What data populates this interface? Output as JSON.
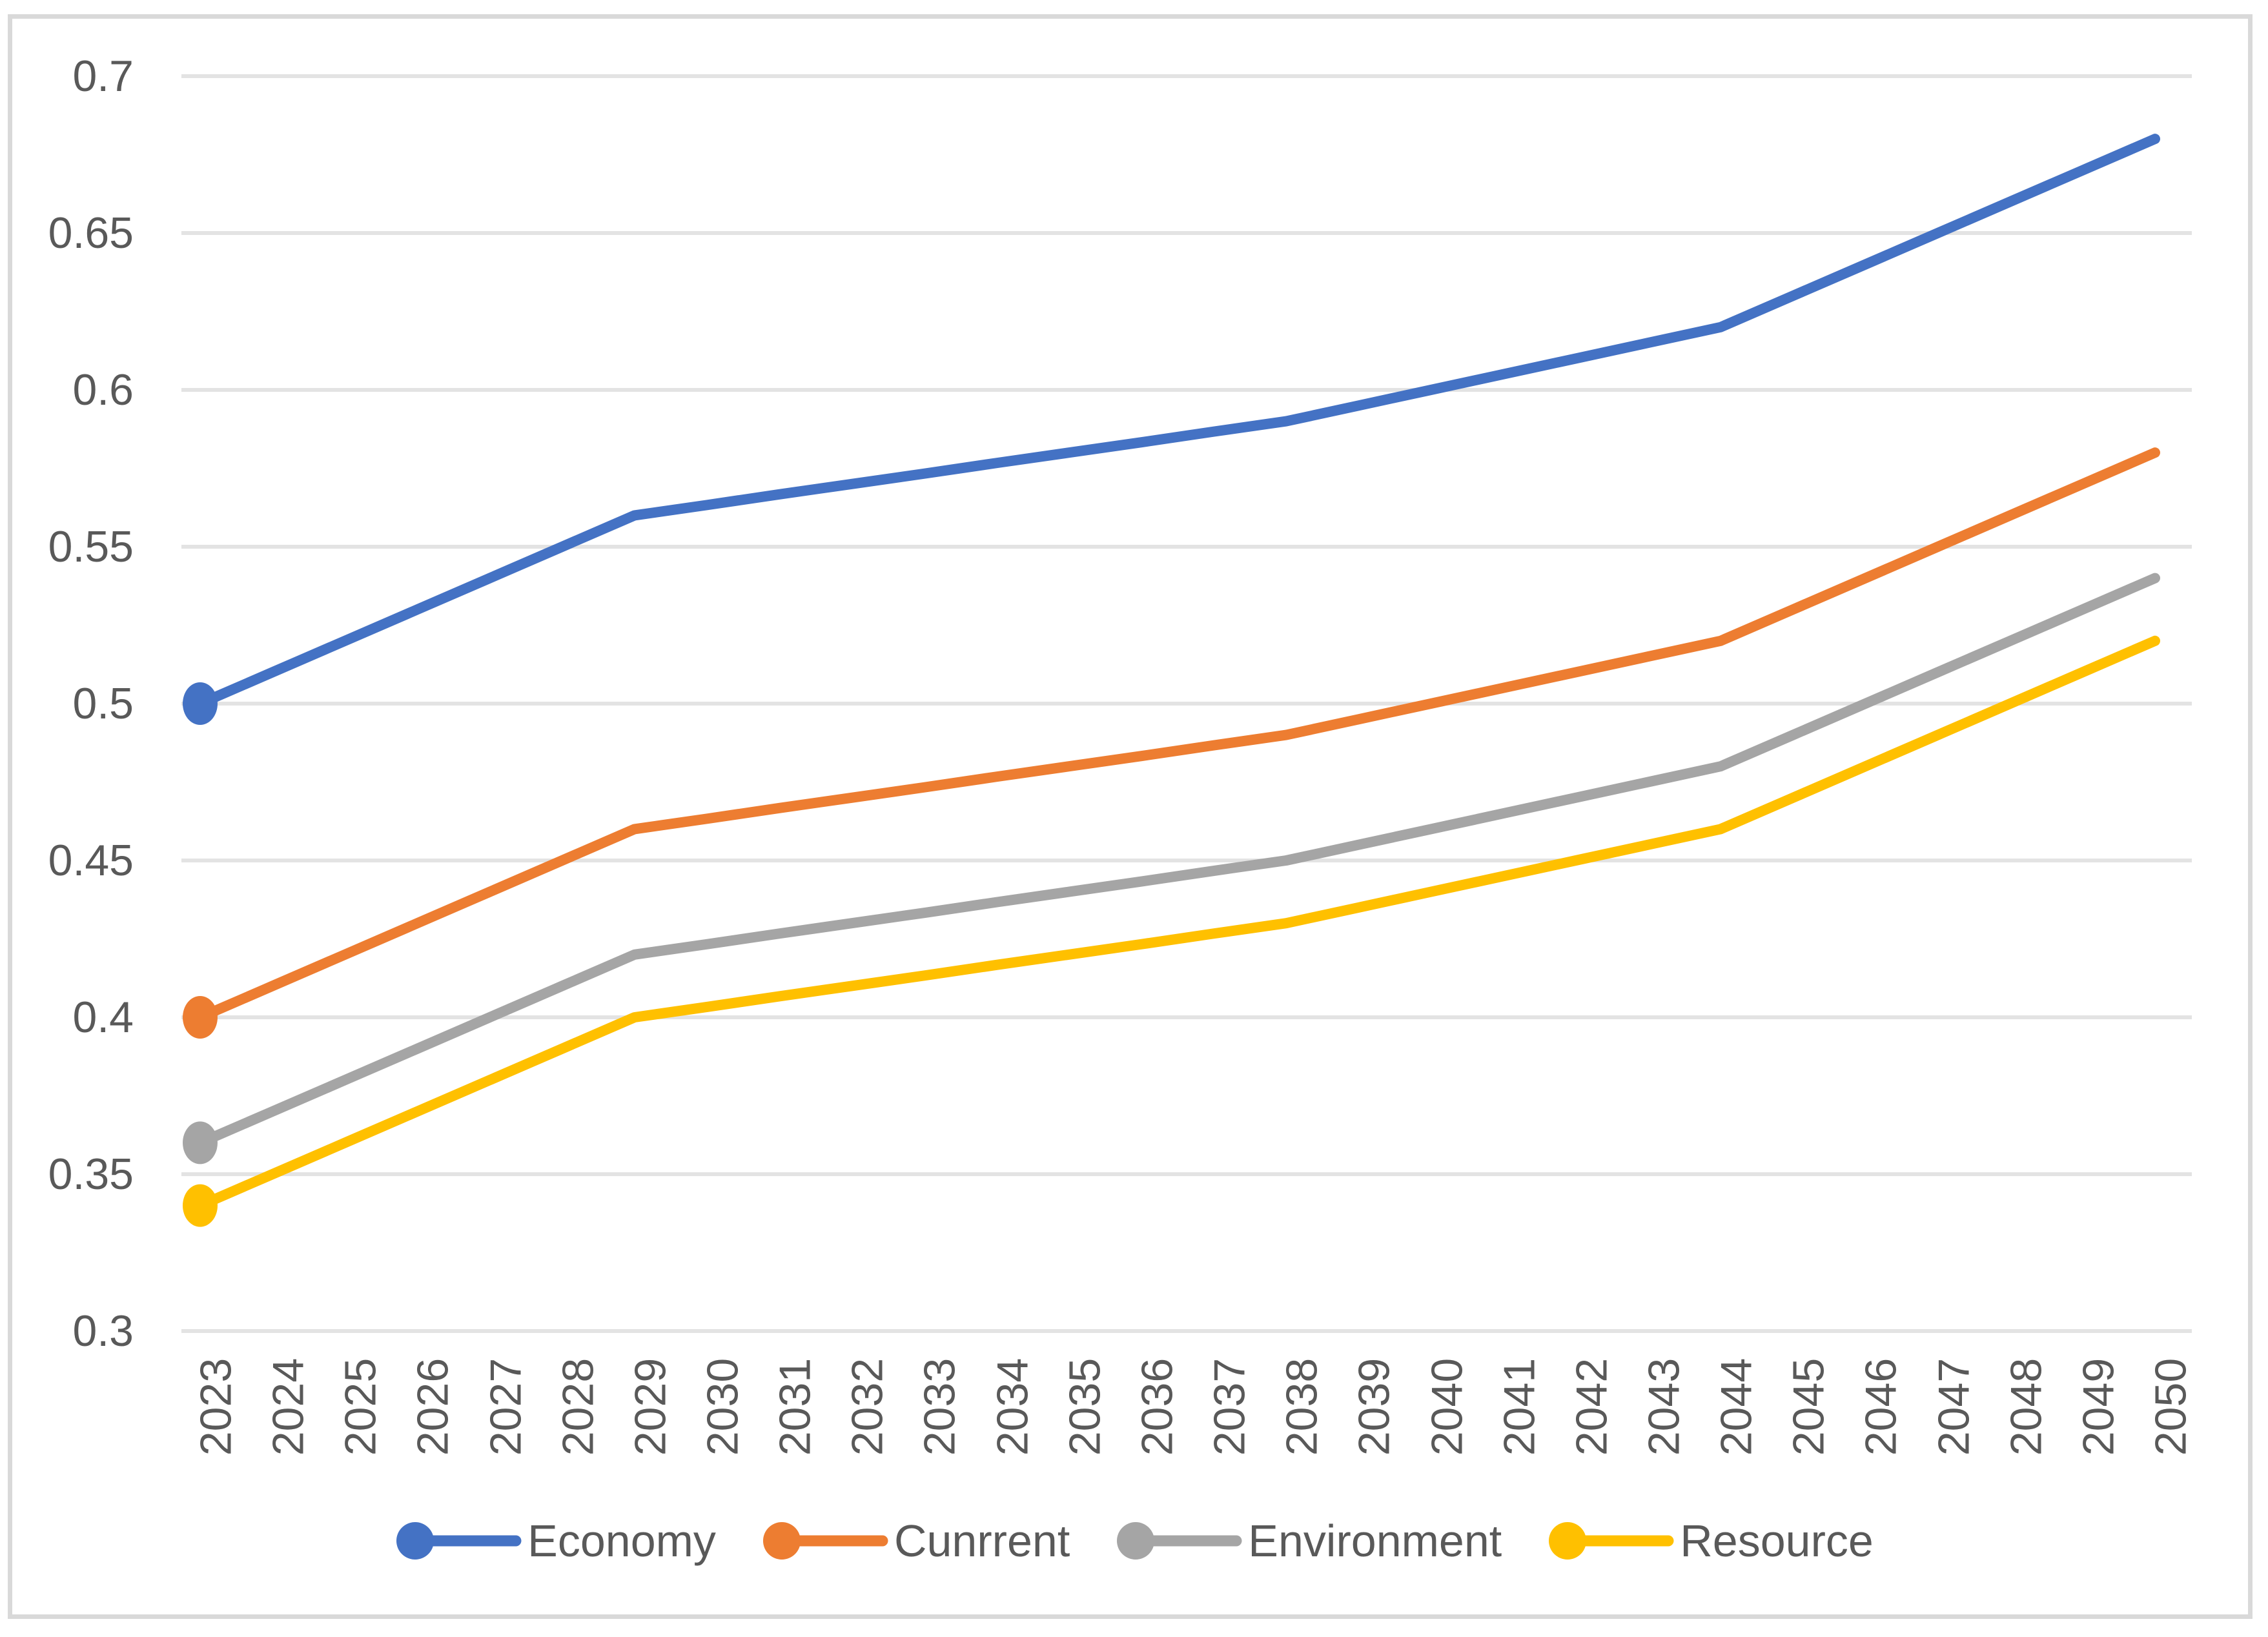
{
  "chart_data": {
    "type": "line",
    "title": "",
    "x": [
      2023,
      2024,
      2025,
      2026,
      2027,
      2028,
      2029,
      2030,
      2031,
      2032,
      2033,
      2034,
      2035,
      2036,
      2037,
      2038,
      2039,
      2040,
      2041,
      2042,
      2043,
      2044,
      2045,
      2046,
      2047,
      2048,
      2049,
      2050
    ],
    "series": [
      {
        "name": "Economy",
        "color": "#4472C4",
        "values": [
          0.5,
          0.51,
          0.52,
          0.53,
          0.54,
          0.55,
          0.56,
          0.5633,
          0.5667,
          0.57,
          0.5733,
          0.5767,
          0.58,
          0.5833,
          0.5867,
          0.59,
          0.595,
          0.6,
          0.605,
          0.61,
          0.615,
          0.62,
          0.63,
          0.64,
          0.65,
          0.66,
          0.67,
          0.68
        ]
      },
      {
        "name": "Cunrrent",
        "color": "#ED7D31",
        "values": [
          0.4,
          0.41,
          0.42,
          0.43,
          0.44,
          0.45,
          0.46,
          0.4633,
          0.4667,
          0.47,
          0.4733,
          0.4767,
          0.48,
          0.4833,
          0.4867,
          0.49,
          0.495,
          0.5,
          0.505,
          0.51,
          0.515,
          0.52,
          0.53,
          0.54,
          0.55,
          0.56,
          0.57,
          0.58
        ]
      },
      {
        "name": "Environment",
        "color": "#A5A5A5",
        "values": [
          0.36,
          0.37,
          0.38,
          0.39,
          0.4,
          0.41,
          0.42,
          0.4233,
          0.4267,
          0.43,
          0.4333,
          0.4367,
          0.44,
          0.4433,
          0.4467,
          0.45,
          0.455,
          0.46,
          0.465,
          0.47,
          0.475,
          0.48,
          0.49,
          0.5,
          0.51,
          0.52,
          0.53,
          0.54
        ]
      },
      {
        "name": "Resource",
        "color": "#FFC000",
        "values": [
          0.34,
          0.35,
          0.36,
          0.37,
          0.38,
          0.39,
          0.4,
          0.4033,
          0.4067,
          0.41,
          0.4133,
          0.4167,
          0.42,
          0.4233,
          0.4267,
          0.43,
          0.435,
          0.44,
          0.445,
          0.45,
          0.455,
          0.46,
          0.47,
          0.48,
          0.49,
          0.5,
          0.51,
          0.52
        ]
      }
    ],
    "y_axis": {
      "min": 0.3,
      "max": 0.7,
      "step": 0.05,
      "tick_labels": [
        "0.7",
        "0.65",
        "0.6",
        "0.55",
        "0.5",
        "0.45",
        "0.4",
        "0.35",
        "0.3"
      ]
    },
    "x_axis": {
      "rotation_deg": -90,
      "tick_labels": [
        "2023",
        "2024",
        "2025",
        "2026",
        "2027",
        "2028",
        "2029",
        "2030",
        "2031",
        "2032",
        "2033",
        "2034",
        "2035",
        "2036",
        "2037",
        "2038",
        "2039",
        "2040",
        "2041",
        "2042",
        "2043",
        "2044",
        "2045",
        "2046",
        "2047",
        "2048",
        "2049",
        "2050"
      ]
    },
    "legend": {
      "position": "bottom",
      "entries": [
        "Economy",
        "Cunrrent",
        "Environment",
        "Resource"
      ]
    },
    "grid": "horizontal",
    "markers": "first-point-only",
    "ylim": [
      0.3,
      0.7
    ]
  },
  "styles": {
    "background": "#FFFFFF",
    "border_color": "#D9D9D9",
    "gridline_color": "#E3E3E3",
    "tick_label_color": "#595959",
    "legend_label_color": "#595959"
  }
}
